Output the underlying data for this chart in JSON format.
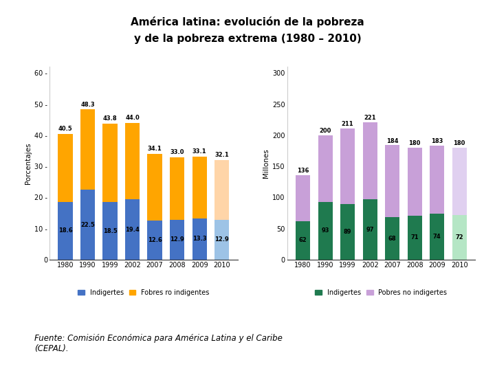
{
  "title_line1": "América latina: evolución de la pobreza",
  "title_line2": "y de la pobreza extrema (1980 – 2010)",
  "footer": "Fuente: Comisión Económica para América Latina y el Caribe\n(CEPAL).",
  "years": [
    "1980",
    "1990",
    "1999",
    "2002",
    "2007",
    "2008",
    "2009",
    "2010"
  ],
  "left_chart": {
    "ylabel": "Porcentajes",
    "indigentes": [
      18.6,
      22.5,
      18.5,
      19.4,
      12.6,
      12.9,
      13.3,
      12.9
    ],
    "pobres_no_indigentes": [
      21.9,
      25.8,
      25.3,
      24.6,
      21.5,
      20.1,
      19.8,
      19.2
    ],
    "total": [
      40.5,
      48.3,
      43.8,
      44.0,
      34.1,
      33.0,
      33.1,
      32.1
    ],
    "indigentes_color_normal": "#4472C4",
    "indigentes_color_2010": "#9DC3E6",
    "pobres_color_normal": "#FFA500",
    "pobres_color_2010": "#FFD5A8",
    "ylim": [
      0,
      62
    ],
    "yticks": [
      0,
      10,
      20,
      30,
      40,
      50,
      60
    ],
    "ytick_labels": [
      "0",
      "10 -",
      "20 -",
      "30 -",
      "40 -",
      "50 -",
      "60 -"
    ],
    "legend_indigentes": "Indigertes",
    "legend_pobres": "Fobres ro indigentes"
  },
  "right_chart": {
    "ylabel": "Millones",
    "indigentes": [
      62,
      93,
      89,
      97,
      68,
      71,
      74,
      72
    ],
    "pobres_no_indigentes": [
      74,
      107,
      122,
      124,
      116,
      109,
      109,
      108
    ],
    "total": [
      136,
      200,
      211,
      221,
      184,
      180,
      183,
      180
    ],
    "indigentes_color_normal": "#1F7A4F",
    "indigentes_color_2010": "#B5E6C5",
    "pobres_color_normal": "#C8A0D8",
    "pobres_color_2010": "#E0D0F0",
    "ylim": [
      0,
      310
    ],
    "yticks": [
      0,
      50,
      100,
      150,
      200,
      250,
      300
    ],
    "legend_indigentes": "Indigertes",
    "legend_pobres": "Pobres no indigertes"
  }
}
